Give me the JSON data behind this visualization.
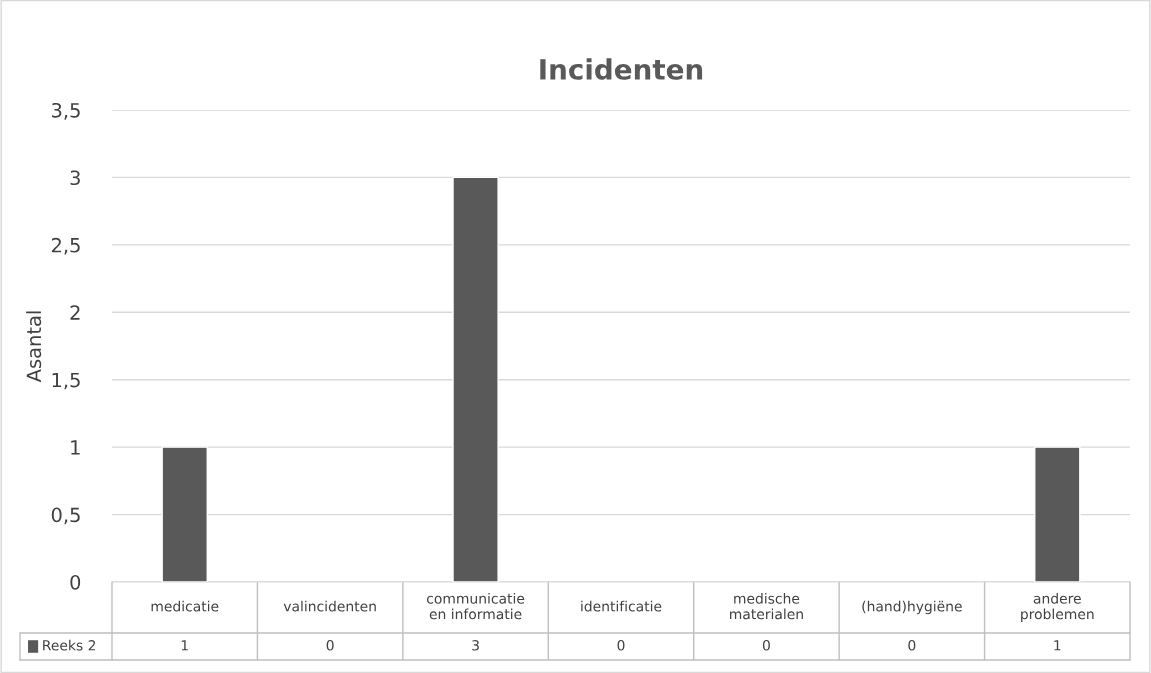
{
  "chart_data": {
    "type": "bar",
    "title": "Incidenten",
    "ylabel": "Asantal",
    "categories": [
      "medicatie",
      "valincidenten",
      "communicatie en informatie",
      "identificatie",
      "medische materialen",
      "(hand)hygiëne",
      "andere problemen"
    ],
    "series": [
      {
        "name": "Reeks 2",
        "color": "#595959",
        "values": [
          1,
          0,
          3,
          0,
          0,
          0,
          1
        ]
      }
    ],
    "ylim": [
      0,
      3.5
    ],
    "yticks": [
      0,
      {
        "value": 0.5,
        "label": "0,5"
      },
      1,
      {
        "value": 1.5,
        "label": "1,5"
      },
      2,
      {
        "value": 2.5,
        "label": "2,5"
      },
      3,
      {
        "value": 3.5,
        "label": "3,5"
      }
    ],
    "grid": "y",
    "legend": "bottom",
    "data_labels": true
  }
}
